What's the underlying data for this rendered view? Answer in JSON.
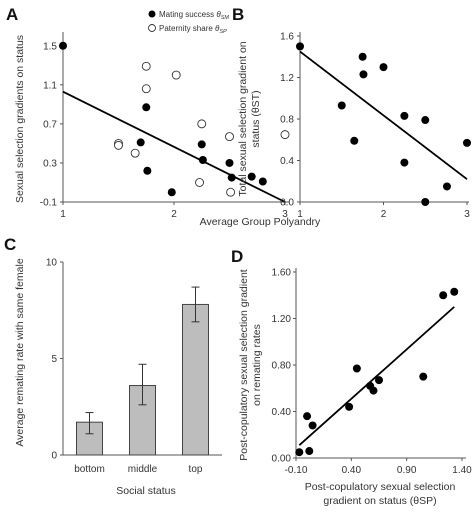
{
  "chart_data": [
    {
      "panel": "A",
      "type": "scatter",
      "ylabel": "Sexual selection gradients on status",
      "xlabel": "Average Group Polyandry",
      "xlim": [
        1,
        3
      ],
      "ylim": [
        -0.1,
        1.6
      ],
      "xticks": [
        "1",
        "2",
        "3"
      ],
      "xtick_values": [
        1,
        2,
        3
      ],
      "yticks": [
        "-0.1",
        "0.3",
        "0.7",
        "1.1",
        "1.5"
      ],
      "ytick_values": [
        -0.1,
        0.3,
        0.7,
        1.1,
        1.5
      ],
      "legend": {
        "placement": "top-right",
        "entries": [
          "Mating success θSM",
          "Paternity share θSP"
        ]
      },
      "series": [
        {
          "name": "Mating success θSM",
          "marker": "filled",
          "points": [
            [
              1.0,
              1.5
            ],
            [
              1.7,
              0.51
            ],
            [
              1.75,
              0.87
            ],
            [
              1.76,
              0.22
            ],
            [
              2.25,
              0.49
            ],
            [
              2.26,
              0.33
            ],
            [
              2.5,
              0.3
            ],
            [
              2.52,
              0.15
            ],
            [
              2.7,
              0.16
            ],
            [
              2.8,
              0.11
            ],
            [
              1.98,
              0.0
            ]
          ]
        },
        {
          "name": "Paternity share θSP",
          "marker": "open",
          "points": [
            [
              1.5,
              0.5
            ],
            [
              1.5,
              0.48
            ],
            [
              1.65,
              0.4
            ],
            [
              1.75,
              1.06
            ],
            [
              1.75,
              1.29
            ],
            [
              2.02,
              1.2
            ],
            [
              2.25,
              0.7
            ],
            [
              2.23,
              0.1
            ],
            [
              2.5,
              0.57
            ],
            [
              2.51,
              0.0
            ],
            [
              3.0,
              0.59
            ]
          ]
        }
      ],
      "trendline": [
        [
          1.0,
          1.03
        ],
        [
          3.0,
          -0.1
        ]
      ]
    },
    {
      "panel": "B",
      "type": "scatter",
      "ylabel_line1": "Total sexual selection gradient on",
      "ylabel_line2": "status (θST)",
      "xlim": [
        1,
        3
      ],
      "ylim": [
        0,
        1.6
      ],
      "xticks": [
        "1",
        "2",
        "3"
      ],
      "xtick_values": [
        1,
        2,
        3
      ],
      "yticks": [
        "0.0",
        "0.4",
        "0.8",
        "1.2",
        "1.6"
      ],
      "ytick_values": [
        0,
        0.4,
        0.8,
        1.2,
        1.6
      ],
      "points": [
        [
          1.0,
          1.5
        ],
        [
          1.5,
          0.93
        ],
        [
          1.65,
          0.59
        ],
        [
          1.75,
          1.4
        ],
        [
          1.76,
          1.23
        ],
        [
          2.0,
          1.3
        ],
        [
          2.25,
          0.83
        ],
        [
          2.25,
          0.38
        ],
        [
          2.5,
          0.79
        ],
        [
          2.5,
          0.0
        ],
        [
          2.76,
          0.15
        ],
        [
          3.0,
          0.57
        ]
      ],
      "trendline": [
        [
          1.0,
          1.45
        ],
        [
          3.0,
          0.22
        ]
      ]
    },
    {
      "panel": "C",
      "type": "bar",
      "ylabel": "Average remating rate with same female",
      "xlabel": "Social status",
      "categories": [
        "bottom",
        "middle",
        "top"
      ],
      "values": [
        1.7,
        3.6,
        7.8
      ],
      "error_low": [
        1.1,
        2.6,
        6.9
      ],
      "error_high": [
        2.2,
        4.7,
        8.7
      ],
      "ylim": [
        0,
        10
      ],
      "yticks": [
        "0",
        "5",
        "10"
      ],
      "ytick_values": [
        0,
        5,
        10
      ]
    },
    {
      "panel": "D",
      "type": "scatter",
      "ylabel_line1": "Post-copulatory sexual selection gradient",
      "ylabel_line2": "on remating rates",
      "xlabel_line1": "Post-copulatory sexual selection",
      "xlabel_line2": "gradient on status (θSP)",
      "xlim": [
        -0.1,
        1.4
      ],
      "ylim": [
        0,
        1.6
      ],
      "xticks": [
        "-0.10",
        "0.40",
        "0.90",
        "1.40"
      ],
      "xtick_values": [
        -0.1,
        0.4,
        0.9,
        1.4
      ],
      "yticks": [
        "0.00",
        "0.40",
        "0.80",
        "1.20",
        "1.60"
      ],
      "ytick_values": [
        0,
        0.4,
        0.8,
        1.2,
        1.6
      ],
      "points": [
        [
          -0.07,
          0.05
        ],
        [
          0.02,
          0.06
        ],
        [
          0.0,
          0.36
        ],
        [
          0.05,
          0.28
        ],
        [
          0.38,
          0.44
        ],
        [
          0.45,
          0.77
        ],
        [
          0.57,
          0.62
        ],
        [
          0.6,
          0.58
        ],
        [
          0.65,
          0.67
        ],
        [
          1.05,
          0.7
        ],
        [
          1.23,
          1.4
        ],
        [
          1.33,
          1.43
        ]
      ],
      "trendline": [
        [
          -0.07,
          0.11
        ],
        [
          1.33,
          1.3
        ]
      ]
    }
  ]
}
